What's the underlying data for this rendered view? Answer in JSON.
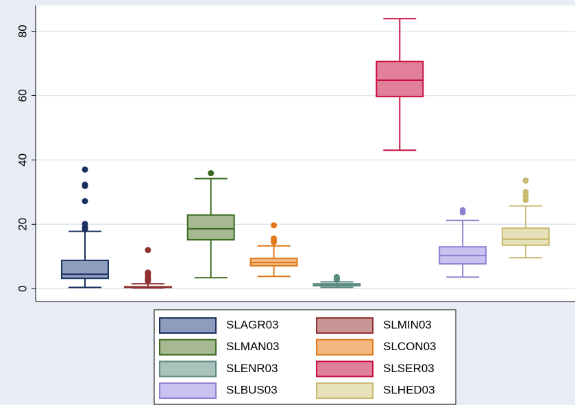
{
  "chart_data": {
    "type": "box",
    "ylim": [
      -4,
      88
    ],
    "yticks": [
      0,
      20,
      40,
      60,
      80
    ],
    "grid": true,
    "legend": "bottom",
    "series": [
      {
        "name": "SLAGR03",
        "color": "#8e9dbd",
        "stroke": "#1a3060",
        "min": 0.4,
        "q1": 3.2,
        "median": 4.5,
        "q3": 8.8,
        "max": 17.8,
        "outliers": [
          37,
          32.3,
          31.9,
          27.2,
          20.1,
          19,
          18.4
        ]
      },
      {
        "name": "SLMIN03",
        "color": "#c99494",
        "stroke": "#903030",
        "min": 0.2,
        "q1": 0.4,
        "median": 0.5,
        "q3": 0.6,
        "max": 1.5,
        "outliers": [
          12,
          5,
          4.5,
          3.6,
          3,
          2.4
        ]
      },
      {
        "name": "SLMAN03",
        "color": "#a6b990",
        "stroke": "#3a6a20",
        "min": 3.4,
        "q1": 15.2,
        "median": 18.6,
        "q3": 22.9,
        "max": 34.2,
        "outliers": [
          35.9
        ]
      },
      {
        "name": "SLCON03",
        "color": "#f1b97f",
        "stroke": "#e07818",
        "min": 3.8,
        "q1": 7.1,
        "median": 8.1,
        "q3": 9.4,
        "max": 13.3,
        "outliers": [
          19.7,
          15.6,
          15,
          14.5
        ]
      },
      {
        "name": "SLENR03",
        "color": "#a9c2bb",
        "stroke": "#5a8a80",
        "min": 0.4,
        "q1": 0.9,
        "median": 1.1,
        "q3": 1.5,
        "max": 2.1,
        "outliers": [
          3.6,
          3.2,
          2.8
        ]
      },
      {
        "name": "SLSER03",
        "color": "#e0809a",
        "stroke": "#c81040",
        "min": 43,
        "q1": 59.7,
        "median": 64.8,
        "q3": 70.6,
        "max": 83.9,
        "outliers": []
      },
      {
        "name": "SLBUS03",
        "color": "#c8c2f0",
        "stroke": "#9080d0",
        "min": 3.6,
        "q1": 7.7,
        "median": 10.3,
        "q3": 13,
        "max": 21.2,
        "outliers": [
          24.4,
          23.7
        ]
      },
      {
        "name": "SLHED03",
        "color": "#e7e1ba",
        "stroke": "#c8b870",
        "min": 9.6,
        "q1": 13.5,
        "median": 15.4,
        "q3": 18.8,
        "max": 25.7,
        "outliers": [
          33.6,
          30,
          28.7,
          27.6
        ]
      }
    ]
  }
}
